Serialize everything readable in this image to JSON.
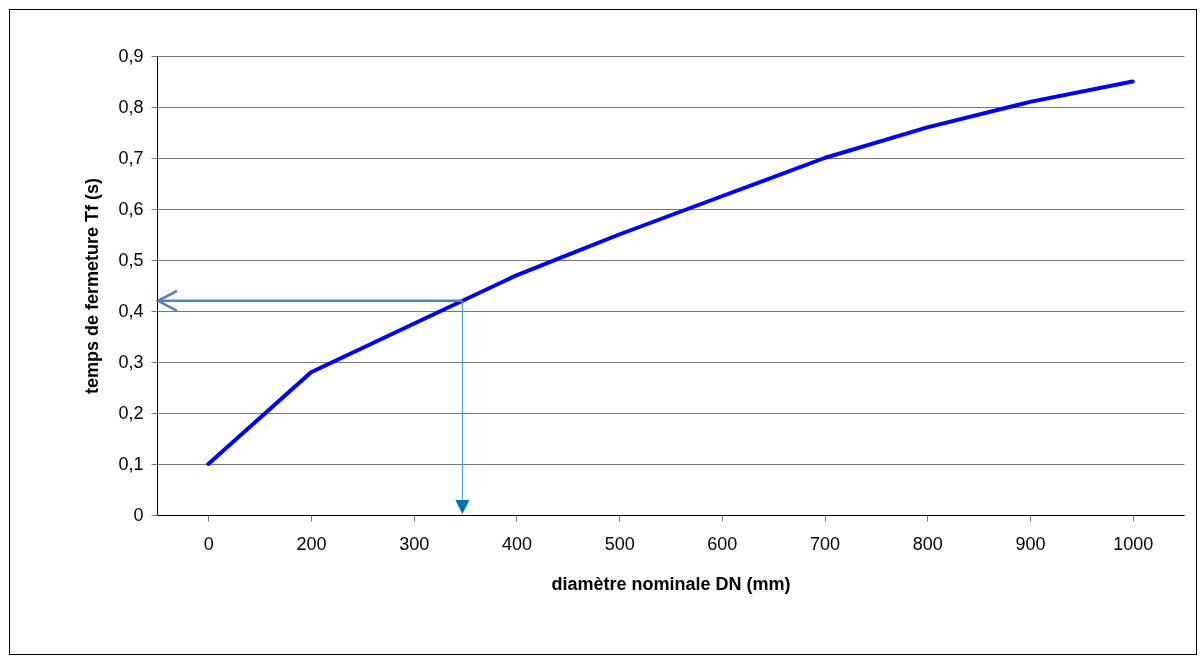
{
  "chart_data": {
    "type": "line",
    "xlabel": "diamètre nominale DN (mm)",
    "ylabel": "temps de fermeture Tf (s)",
    "categories": [
      "0",
      "200",
      "300",
      "400",
      "500",
      "600",
      "700",
      "800",
      "900",
      "1000"
    ],
    "series": [
      {
        "color": "#0000ff",
        "values": [
          0.1,
          0.28,
          0.375,
          0.47,
          0.55,
          0.625,
          0.7,
          0.76,
          0.81,
          0.85
        ]
      }
    ],
    "ylim": [
      0,
      0.9
    ],
    "yticks": [
      {
        "value": 0,
        "label": "0"
      },
      {
        "value": 0.1,
        "label": "0,1"
      },
      {
        "value": 0.2,
        "label": "0,2"
      },
      {
        "value": 0.3,
        "label": "0,3"
      },
      {
        "value": 0.4,
        "label": "0,4"
      },
      {
        "value": 0.5,
        "label": "0,5"
      },
      {
        "value": 0.6,
        "label": "0,6"
      },
      {
        "value": 0.7,
        "label": "0,7"
      },
      {
        "value": 0.8,
        "label": "0,8"
      },
      {
        "value": 0.9,
        "label": "0,9"
      }
    ],
    "ref_lines": [
      {
        "axis": "y",
        "value": 0.42,
        "color": "#4f81bd"
      }
    ],
    "grid": "y",
    "marker": "none",
    "line_style": "solid"
  }
}
